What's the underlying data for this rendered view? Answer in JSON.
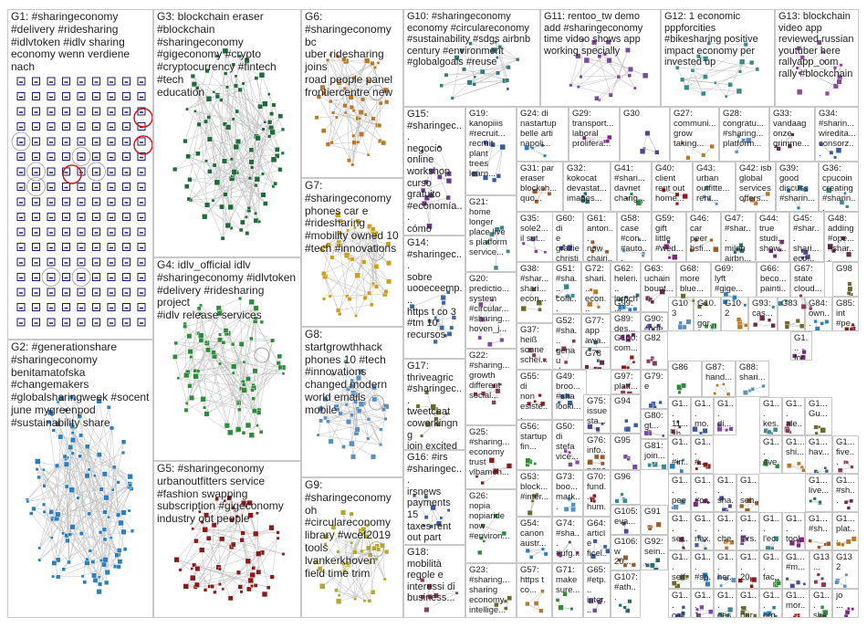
{
  "groups": [
    {
      "id": "G1",
      "label": "G1: #sharingeconomy\n#delivery #ridesharing\n#idlvtoken #idlv sharing\neconomy wenn verdiene nach",
      "color": "#1a1a6e",
      "kind": "grid"
    },
    {
      "id": "G2",
      "label": "G2: #generationshare\n#sharingeconomy\nbenitamatofska\n#changemakers\n#globalsharingweek #socent\njune mygreenpod\n#sustainability share",
      "color": "#2a7fc0",
      "kind": "cluster"
    },
    {
      "id": "G3",
      "label": "G3: blockchain eraser\n#blockchain #sharingeconomy\n#gigeconomy #crypto\n#cryptocurrency #fintech #tech\neducation",
      "color": "#1f6b3a",
      "kind": "cluster"
    },
    {
      "id": "G4",
      "label": "G4: idlv_official idlv\n#sharingeconomy #idlvtoken\n#delivery #ridesharing project\n#idlv release services",
      "color": "#2e8b3a",
      "kind": "cluster"
    },
    {
      "id": "G5",
      "label": "G5: #sharingeconomy\nurbanoutfitters service\n#fashion swapping\nsubscription #gigeconomy\nindustry out people",
      "color": "#8b1a1a",
      "kind": "cluster"
    },
    {
      "id": "G6",
      "label": "G6:          #sharingeconomy bc\nuber ridesharing joins\nroad people panel\nfrontiercentre new",
      "color": "#b87a2a",
      "kind": "cluster"
    },
    {
      "id": "G7",
      "label": "G7:\n#sharingeconomy\nphones car e\n#ridesharing\n#mobility owned 10\n#tech #innovations",
      "color": "#c9a21a",
      "kind": "cluster"
    },
    {
      "id": "G8",
      "label": "G8: startgrowthhack\nphones 10 #tech\n#innovations\nchanged modern\nworld emails mobile",
      "color": "#5a8fc0",
      "kind": "cluster"
    },
    {
      "id": "G9",
      "label": "G9: #sharingeconomy oh\n#circulareconomy\nlibrary #wcef2019\ntools lvankerkhoven\nfield time trim",
      "color": "#b4a830",
      "kind": "cluster"
    },
    {
      "id": "G10",
      "label": "G10: #sharingeconomy\neconomy #circulareconomy\n#sustainability #sdgs airbnb\ncentury #environment\n#globalgoals #reuse",
      "color": "#3a7a7a",
      "kind": "small"
    },
    {
      "id": "G11",
      "label": "G11: rentoo_tw demo\nadd #sharingeconomy\ntime video shows app\nworking specially",
      "color": "#7a4aa0",
      "kind": "small"
    },
    {
      "id": "G12",
      "label": "G12: 1 economic\npppforcities\n#bikesharing positive\nimpact economy per\ninvested up",
      "color": "#3a8a8a",
      "kind": "small"
    },
    {
      "id": "G13",
      "label": "G13: blockchain\nvideo app\nreviewed russian\nyoutuber here\nrallyapp_com\nrally #blockchain",
      "color": "#8a4a9a",
      "kind": "small"
    },
    {
      "id": "G14",
      "label": "G14:\n#sharingec...\nsobre\nuooeceemp...\nhttps t co 3\n#tm 10\nrecursos",
      "color": "#3a6aa0",
      "kind": "small"
    },
    {
      "id": "G15",
      "label": "G15:\n#sharingec...\nnegocio\nonline\nworkshop\ncurso\ngratuito\n#economía...\ncómo\nshare_nl...",
      "color": "#6a3a8a",
      "kind": "small"
    },
    {
      "id": "G16",
      "label": "G16: #irs\n#sharingec...\nirsnews\npayments 15\ntaxes rent\nout part\nhome",
      "color": "#3a5a9a",
      "kind": "small"
    },
    {
      "id": "G17",
      "label": "G17:\nthriveagric\n#sharingec...\ntweetchat\ncoworkingng\njoin excited\nhaving",
      "color": "#6a6a2a",
      "kind": "small"
    },
    {
      "id": "G18",
      "label": "G18:\nmobilità\nregole e\ninteressi di\nbusiness...",
      "color": "#8a3a5a",
      "kind": "small"
    }
  ],
  "small_groups": [
    {
      "id": "G19",
      "label": "G19:\nkanopiiis\n#recruit...\nrecruit\nplant\ntrees\nlearn..."
    },
    {
      "id": "G20",
      "label": "G20:\npredictio...\nsystem\n#circular...\n#sharing...\nhoven_j..."
    },
    {
      "id": "G21",
      "label": "G21:\nhome\nlonger\nplace live\ns platform\nservice..."
    },
    {
      "id": "G22",
      "label": "G22:\n#sharing...\ngrowth\ndifferent\nsocial..."
    },
    {
      "id": "G23",
      "label": "G23:\n#sharing...\nsharing\neconomy\nintellige..."
    },
    {
      "id": "G24",
      "label": "G24: di\nnastartup\nbelle arti\nnapoli..."
    },
    {
      "id": "G25",
      "label": "G25:\n#sharing...\neconomy\ntrust\nvlbamoh..."
    },
    {
      "id": "G26",
      "label": "G26:\nnopia\nnopiaride\nnow\n#environ..."
    },
    {
      "id": "G27",
      "label": "G27:\ncommuni...\ngrow\ntaking..."
    },
    {
      "id": "G28",
      "label": "G28:\ncongratu...\n#sharing...\nplatform..."
    },
    {
      "id": "G29",
      "label": "G29:\ntransport...\nlaboral\nprolifera..."
    },
    {
      "id": "G30",
      "label": "G30"
    },
    {
      "id": "G31",
      "label": "G31: par\neraser\nblockch...\nquo..."
    },
    {
      "id": "G32",
      "label": "G32:\nkokocat\ndevastat...\nimages..."
    },
    {
      "id": "G33",
      "label": "G33:\nvandaag\nonze\ngrimme..."
    },
    {
      "id": "G34",
      "label": "G34:\n#sharin...\nwiredita...\nconsorz..."
    },
    {
      "id": "G35",
      "label": "G35:\nsole2...\nil sut..."
    },
    {
      "id": "G36",
      "label": "G36:\ncpucoin\ncreating\n#sharin..."
    },
    {
      "id": "G37",
      "label": "G37:\nheiß\nsonne\nschei..."
    },
    {
      "id": "G38",
      "label": "G38:\n#shar...\nshari...\necon..."
    },
    {
      "id": "G39",
      "label": "G39:\ngood\ndiscuss\n#sharin..."
    },
    {
      "id": "G40",
      "label": "G40:\nclient\nrent out\nhome..."
    },
    {
      "id": "G41",
      "label": "G41:\n#shari...\ndavnet\nchang..."
    },
    {
      "id": "G42",
      "label": "G42: isb\nglobal\nservices\noffers..."
    },
    {
      "id": "G43",
      "label": "G43:\nurban\noutfitte...\nrent..."
    },
    {
      "id": "G44",
      "label": "G44:\ntrue\nstudi...\nshow..."
    },
    {
      "id": "G45",
      "label": "G45:\n#shar...\nshari...\neco..."
    },
    {
      "id": "G46",
      "label": "G46:\ncar\npeer\nhsfi..."
    },
    {
      "id": "G47",
      "label": "G47:\n#shar...\nmilan\nairbn..."
    },
    {
      "id": "G48",
      "label": "G48:\nadding\n#ope...\n#shar..."
    },
    {
      "id": "G49",
      "label": "G49:\nbroo...\n#sha\nlooki..."
    },
    {
      "id": "G50",
      "label": "G50:\ndi\nstefa\nvice..."
    },
    {
      "id": "G51",
      "label": "G51:\n#sha...\ncola...\npeop..."
    },
    {
      "id": "G52",
      "label": "G52:\n#sha...\ngenau\ndes..."
    },
    {
      "id": "G53",
      "label": "G53:\nblock...\n#inter..."
    },
    {
      "id": "G54",
      "label": "G54:\ncanon\naustr..."
    },
    {
      "id": "G55",
      "label": "G55:\ndi\nnon\nesiste..."
    },
    {
      "id": "G56",
      "label": "G56:\nstartup\nfin..."
    },
    {
      "id": "G57",
      "label": "G57:\nhttps t\nco..."
    },
    {
      "id": "G58",
      "label": "G58:\ncase\n#con...\n#auto..."
    },
    {
      "id": "G59",
      "label": "G59:\ngift\nlittle\n#wed..."
    },
    {
      "id": "G60",
      "label": "G60: di\ne\ngrazie\nchristi..."
    },
    {
      "id": "G61",
      "label": "G61:\nanton...\nnow\nchairi..."
    },
    {
      "id": "G62",
      "label": "G62:\nheleri...\nlernch..."
    },
    {
      "id": "G63",
      "label": "G63:\nuchain\nbount..."
    },
    {
      "id": "G64",
      "label": "G64:\narticle\nficel..."
    },
    {
      "id": "G65",
      "label": "G65:\n#etp...\ninter..."
    },
    {
      "id": "G66",
      "label": "G66:\nbeco...\npainti..."
    },
    {
      "id": "G67",
      "label": "G67:\nstate\ncloud..."
    },
    {
      "id": "G68",
      "label": "G68:\nmore\nblue..."
    },
    {
      "id": "G69",
      "label": "G69:\nlyft\n#gige..."
    },
    {
      "id": "G70",
      "label": "G70:\nfund...\nhum..."
    },
    {
      "id": "G71",
      "label": "G71:\nmake\nsure..."
    },
    {
      "id": "G72",
      "label": "G72:\nshari...\necon..."
    },
    {
      "id": "G73",
      "label": "G73:\nboo...\nmark..."
    },
    {
      "id": "G74",
      "label": "G74:\n#sha...\n#ufg..."
    },
    {
      "id": "G75",
      "label": "G75:\nissue\nsta..."
    },
    {
      "id": "G76",
      "label": "G76:\ninfo...\npape..."
    },
    {
      "id": "G77",
      "label": "G77:\napp\nawa..."
    },
    {
      "id": "G78",
      "label": "G78"
    },
    {
      "id": "G79",
      "label": "G79:\ne"
    },
    {
      "id": "G80",
      "label": "G80:\ngt..."
    },
    {
      "id": "G81",
      "label": "G81:\njoin..."
    },
    {
      "id": "G82",
      "label": "G82"
    },
    {
      "id": "G83",
      "label": "G83"
    },
    {
      "id": "G84",
      "label": "G84:\nown..."
    },
    {
      "id": "G85",
      "label": "G85:\nint\n#pe..."
    },
    {
      "id": "G86",
      "label": "G86"
    },
    {
      "id": "G87",
      "label": "G87:\nhand..."
    },
    {
      "id": "G88",
      "label": "G88:\nshari..."
    },
    {
      "id": "G89",
      "label": "G89:\ndes..."
    },
    {
      "id": "G90",
      "label": "G90:\ncode"
    },
    {
      "id": "G91",
      "label": "G91"
    },
    {
      "id": "G92",
      "label": "G92:\nsein..."
    },
    {
      "id": "G93",
      "label": "G93:\ncas..."
    },
    {
      "id": "G94",
      "label": "G94"
    },
    {
      "id": "G95",
      "label": "G95"
    },
    {
      "id": "G96",
      "label": "G96"
    },
    {
      "id": "G97",
      "label": "G97:\nplatf..."
    },
    {
      "id": "G98",
      "label": "G98"
    },
    {
      "id": "G99",
      "label": "G99:\ndes..."
    },
    {
      "id": "G100",
      "label": "G100:\ncom..."
    },
    {
      "id": "G101",
      "label": "G10...\ngor...\nfeeli..."
    },
    {
      "id": "G102",
      "label": "G102"
    },
    {
      "id": "G103",
      "label": "G103"
    },
    {
      "id": "G104",
      "label": "G1...\nfor...\nses..."
    },
    {
      "id": "G105",
      "label": "G105:\neva..."
    },
    {
      "id": "G106",
      "label": "G106:\nw 20..."
    },
    {
      "id": "G107",
      "label": "G107:\n#ath..."
    },
    {
      "id": "G108",
      "label": "G1...\n11...\nsh..."
    },
    {
      "id": "G109",
      "label": "G1...\nmo..."
    },
    {
      "id": "G110",
      "label": "G1...\ndi..."
    },
    {
      "id": "G111",
      "label": "G1...\nkes..."
    },
    {
      "id": "G112",
      "label": "G1...\nale..."
    },
    {
      "id": "G113",
      "label": "G1...\nGu..."
    },
    {
      "id": "G114",
      "label": "G1...\n#in..."
    },
    {
      "id": "G115",
      "label": "G1...\n#..."
    },
    {
      "id": "G116",
      "label": "G1...\neve..."
    },
    {
      "id": "G117",
      "label": "G1...\nshi..."
    },
    {
      "id": "G118",
      "label": "G1...\npee..."
    },
    {
      "id": "G119",
      "label": "G1...\n#ca..."
    },
    {
      "id": "G120",
      "label": "G1...\nsha..."
    },
    {
      "id": "G121",
      "label": "G1...\nseh..."
    },
    {
      "id": "G122",
      "label": "G1...\nhav..."
    },
    {
      "id": "G123",
      "label": "G1...\nser..."
    },
    {
      "id": "G124",
      "label": "G1...\nnex..."
    },
    {
      "id": "G125",
      "label": "G1...\n#irs..."
    },
    {
      "id": "G126",
      "label": "G1...\nl'ec..."
    },
    {
      "id": "G127",
      "label": "G1...\nfive..."
    },
    {
      "id": "G128",
      "label": "G1...\nself..."
    },
    {
      "id": "G129",
      "label": "G1...\n#sh..."
    },
    {
      "id": "G130",
      "label": "G1...\n20..."
    },
    {
      "id": "G131",
      "label": "G1...\nfac..."
    },
    {
      "id": "G133",
      "label": "G1...\nche..."
    },
    {
      "id": "G134",
      "label": "G1...\nher..."
    },
    {
      "id": "G135",
      "label": "G1...\ntool..."
    },
    {
      "id": "G136",
      "label": "G1...\n#m..."
    },
    {
      "id": "G137",
      "label": "G1...\n#sh..."
    },
    {
      "id": "G138",
      "label": "G1...\nlive..."
    },
    {
      "id": "G139",
      "label": "G1...\n#sh..."
    },
    {
      "id": "G140",
      "label": "G1...\ncall..."
    },
    {
      "id": "G141",
      "label": "G1...\n1 h..."
    },
    {
      "id": "G142",
      "label": "G1...\nges..."
    },
    {
      "id": "G143",
      "label": "G13..."
    },
    {
      "id": "G144",
      "label": "G1...\nnur..."
    },
    {
      "id": "G145",
      "label": "G1...\norg..."
    },
    {
      "id": "G146",
      "label": "G1...\nmor..."
    },
    {
      "id": "G147",
      "label": "G1...\nsha..."
    },
    {
      "id": "G148",
      "label": "G1...\nplat..."
    },
    {
      "id": "G132",
      "label": "G132"
    },
    {
      "id": "G149",
      "label": "jo\n..."
    }
  ]
}
